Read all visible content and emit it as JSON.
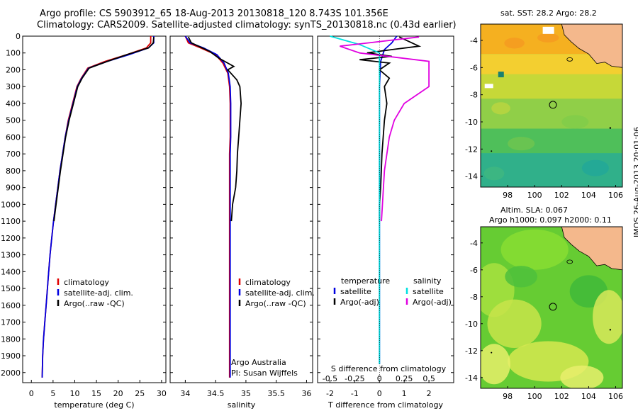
{
  "header": {
    "line1": "Argo profile: CS 5903912_65 18-Aug-2013 20130818_120 8.743S 101.356E",
    "line2": "Climatology: CARS2009. Satellite-adjusted climatology: synTS_20130818.nc (0.43d earlier)"
  },
  "stamp": "IMOS 26-Aug-2013 20:01:06",
  "map_top": {
    "title": "sat. SST: 28.2 Argo: 28.2"
  },
  "map_bottom": {
    "title1": "Altim. SLA: 0.067",
    "title2": "Argo h1000: 0.097 h2000: 0.11"
  },
  "colors": {
    "climatology": "#e00000",
    "satellite": "#0000e0",
    "argo": "#000000",
    "sat_sal": "#00e0e0",
    "argo_sal": "#e000e0",
    "land": "#f4b88c"
  },
  "chart_data": [
    {
      "type": "line",
      "xlabel": "temperature (deg C)",
      "ylabel": "",
      "xlim": [
        -2,
        31
      ],
      "ylim": [
        2060,
        0
      ],
      "x_ticks": [
        0,
        5,
        10,
        15,
        20,
        25,
        30
      ],
      "y_ticks": [
        0,
        100,
        200,
        300,
        400,
        500,
        600,
        700,
        800,
        900,
        1000,
        1100,
        1200,
        1300,
        1400,
        1500,
        1600,
        1700,
        1800,
        1900,
        2000
      ],
      "legend": [
        "climatology",
        "satellite-adj. clim.",
        "Argo(..raw -QC)"
      ],
      "series": [
        {
          "name": "climatology",
          "color": "#e00000",
          "x": [
            27.5,
            27.5,
            26.5,
            22,
            17,
            13,
            11.5,
            10.5,
            9.5,
            8.5,
            7.8,
            7.2,
            6.6,
            6.1,
            5.6,
            5.1,
            4.7,
            4.3,
            4.0,
            3.7,
            3.4,
            3.1,
            2.8,
            2.6,
            2.5
          ],
          "y": [
            0,
            40,
            70,
            110,
            150,
            190,
            250,
            300,
            400,
            500,
            600,
            700,
            800,
            900,
            1000,
            1100,
            1200,
            1300,
            1400,
            1500,
            1600,
            1700,
            1800,
            1900,
            2030
          ]
        },
        {
          "name": "satellite-adj. clim.",
          "color": "#0000e0",
          "x": [
            28.2,
            28.2,
            27,
            22.5,
            17.5,
            13.2,
            11.6,
            10.6,
            9.6,
            8.6,
            7.8,
            7.2,
            6.6,
            6.1,
            5.6,
            5.1,
            4.7,
            4.3,
            4.0,
            3.7,
            3.4,
            3.1,
            2.8,
            2.6,
            2.5
          ],
          "y": [
            0,
            40,
            70,
            110,
            150,
            190,
            250,
            300,
            400,
            500,
            600,
            700,
            800,
            900,
            1000,
            1100,
            1200,
            1300,
            1400,
            1500,
            1600,
            1700,
            1800,
            1900,
            2030
          ]
        },
        {
          "name": "Argo(..raw -QC)",
          "color": "#000000",
          "x": [
            28.2,
            28.1,
            27,
            22,
            17.5,
            13.3,
            11.7,
            10.7,
            9.7,
            8.7,
            7.9,
            7.3,
            6.7,
            6.2,
            5.7,
            5.2
          ],
          "y": [
            5,
            40,
            70,
            110,
            150,
            190,
            250,
            300,
            400,
            500,
            600,
            700,
            800,
            900,
            1000,
            1100
          ]
        }
      ]
    },
    {
      "type": "line",
      "xlabel": "salinity",
      "ylabel": "",
      "xlim": [
        33.75,
        36.1
      ],
      "ylim": [
        2060,
        0
      ],
      "x_ticks": [
        34,
        34.5,
        35,
        35.5,
        36
      ],
      "x_tick_labels": [
        "34",
        "34.5",
        "35",
        "35.5",
        "36"
      ],
      "legend": [
        "climatology",
        "satellite-adj. clim.",
        "Argo(..raw -QC)"
      ],
      "annotations": [
        "Argo Australia",
        "PI: Susan Wijffels"
      ],
      "series": [
        {
          "name": "climatology",
          "color": "#e00000",
          "x": [
            34.0,
            34.05,
            34.25,
            34.5,
            34.62,
            34.7,
            34.73,
            34.74,
            34.74,
            34.74,
            34.73,
            34.73,
            34.73,
            34.73,
            34.73,
            34.73,
            34.73,
            34.73,
            34.73,
            34.73,
            34.73,
            34.73,
            34.73,
            34.73
          ],
          "y": [
            0,
            40,
            70,
            110,
            160,
            220,
            300,
            400,
            500,
            600,
            700,
            800,
            900,
            1000,
            1100,
            1200,
            1300,
            1400,
            1500,
            1600,
            1700,
            1800,
            1900,
            2030
          ]
        },
        {
          "name": "satellite-adj. clim.",
          "color": "#0000e0",
          "x": [
            34.0,
            34.08,
            34.3,
            34.52,
            34.64,
            34.71,
            34.74,
            34.75,
            34.75,
            34.75,
            34.74,
            34.74,
            34.74,
            34.74,
            34.74,
            34.74,
            34.74,
            34.74,
            34.74,
            34.74,
            34.74,
            34.74,
            34.74,
            34.74
          ],
          "y": [
            0,
            40,
            70,
            110,
            160,
            220,
            300,
            400,
            500,
            600,
            700,
            800,
            900,
            1000,
            1100,
            1200,
            1300,
            1400,
            1500,
            1600,
            1700,
            1800,
            1900,
            2030
          ]
        },
        {
          "name": "Argo(..raw -QC)",
          "color": "#000000",
          "x": [
            34.05,
            34.1,
            34.4,
            34.55,
            34.8,
            34.7,
            34.85,
            34.9,
            34.92,
            34.9,
            34.88,
            34.86,
            34.85,
            34.83,
            34.78,
            34.76
          ],
          "y": [
            5,
            40,
            90,
            130,
            180,
            200,
            260,
            300,
            400,
            500,
            600,
            700,
            800,
            900,
            1000,
            1100
          ]
        }
      ]
    },
    {
      "type": "line",
      "xlabel": "T difference from climatology",
      "x2label": "S difference from climatology",
      "ylabel": "",
      "xlim": [
        -2.5,
        3
      ],
      "ylim": [
        2060,
        0
      ],
      "x_ticks": [
        -2,
        -1,
        0,
        1,
        2
      ],
      "x2_ticks": [
        -0.5,
        -0.25,
        0,
        0.25,
        0.5
      ],
      "x2_tick_labels": [
        "-0.5",
        "-0.25",
        "0",
        "0.25",
        "0.5"
      ],
      "legend": [
        "temperature",
        "satellite",
        "Argo(-adj)",
        "salinity",
        "satellite",
        "Argo(-adj)"
      ],
      "series": [
        {
          "name": "satellite",
          "group": "temperature",
          "color": "#0000e0",
          "x": [
            0.7,
            0.5,
            0.2,
            0.05,
            0.0,
            0.0,
            0.0,
            0.0,
            0.0,
            0.0
          ],
          "y": [
            0,
            40,
            80,
            150,
            300,
            500,
            800,
            1100,
            1500,
            1950
          ]
        },
        {
          "name": "Argo(-adj)",
          "group": "temperature",
          "color": "#000000",
          "x": [
            0.8,
            1.6,
            0.5,
            -0.5,
            0.5,
            -0.8,
            0.4,
            0.0,
            0.4,
            0.2,
            0.3,
            0.2,
            0.1,
            0.05,
            0.0,
            0.0
          ],
          "y": [
            5,
            60,
            80,
            100,
            120,
            140,
            160,
            200,
            250,
            300,
            400,
            500,
            700,
            900,
            1000,
            1100
          ]
        },
        {
          "name": "satellite",
          "group": "salinity",
          "color": "#00e0e0",
          "x": [
            -0.5,
            -0.2,
            0.0,
            0.0,
            0.0,
            0.0,
            0.0,
            0.0
          ],
          "y": [
            0,
            50,
            100,
            200,
            500,
            900,
            1400,
            1950
          ]
        },
        {
          "name": "Argo(-adj)",
          "group": "salinity",
          "color": "#e000e0",
          "x": [
            0.4,
            -0.4,
            -0.2,
            0.5,
            0.5,
            0.25,
            0.15,
            0.1,
            0.05,
            0.02
          ],
          "y": [
            5,
            60,
            100,
            150,
            300,
            400,
            500,
            600,
            800,
            1100
          ]
        }
      ]
    },
    {
      "type": "heatmap",
      "title": "sat. SST: 28.2 Argo: 28.2",
      "xlim": [
        96,
        106.5
      ],
      "ylim": [
        -14.8,
        -2.8
      ],
      "x_ticks": [
        98,
        100,
        102,
        104,
        106
      ],
      "y_ticks": [
        -4,
        -6,
        -8,
        -10,
        -12,
        -14
      ],
      "argo_position": [
        101.356,
        -8.743
      ]
    },
    {
      "type": "heatmap",
      "title": "Altim. SLA: 0.067",
      "subtitle": "Argo h1000: 0.097 h2000: 0.11",
      "xlim": [
        96,
        106.5
      ],
      "ylim": [
        -14.8,
        -2.8
      ],
      "x_ticks": [
        98,
        100,
        102,
        104,
        106
      ],
      "y_ticks": [
        -4,
        -6,
        -8,
        -10,
        -12,
        -14
      ],
      "argo_position": [
        101.356,
        -8.743
      ]
    }
  ]
}
